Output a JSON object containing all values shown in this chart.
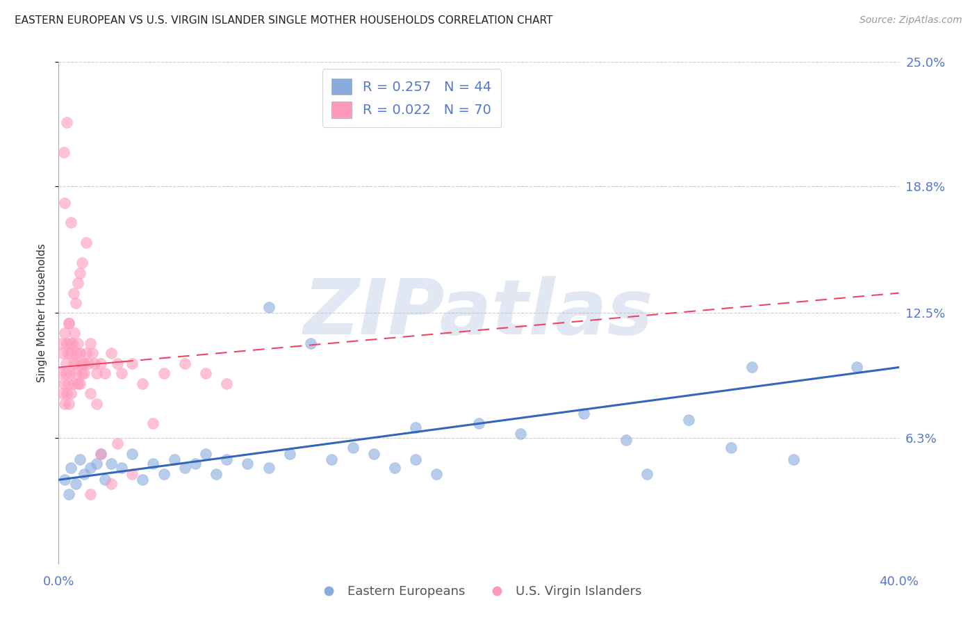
{
  "title": "EASTERN EUROPEAN VS U.S. VIRGIN ISLANDER SINGLE MOTHER HOUSEHOLDS CORRELATION CHART",
  "source": "Source: ZipAtlas.com",
  "ylabel": "Single Mother Households",
  "xlim": [
    0.0,
    40.0
  ],
  "ylim": [
    0.0,
    25.0
  ],
  "yticks": [
    6.3,
    12.5,
    18.8,
    25.0
  ],
  "ytick_labels": [
    "6.3%",
    "12.5%",
    "18.8%",
    "25.0%"
  ],
  "xticks": [
    0.0,
    10.0,
    20.0,
    30.0,
    40.0
  ],
  "xtick_labels": [
    "0.0%",
    "",
    "",
    "",
    "40.0%"
  ],
  "blue_color": "#88AADD",
  "pink_color": "#FF99BB",
  "blue_line_color": "#3366BB",
  "pink_line_color": "#EE4466",
  "background_color": "#FFFFFF",
  "grid_color": "#CCCCCC",
  "title_fontsize": 11,
  "tick_label_color": "#5577CC",
  "blue_scatter_x": [
    0.3,
    0.5,
    0.6,
    0.8,
    1.0,
    1.2,
    1.5,
    1.8,
    2.0,
    2.2,
    2.5,
    3.0,
    3.5,
    4.0,
    4.5,
    5.0,
    5.5,
    6.0,
    6.5,
    7.0,
    7.5,
    8.0,
    9.0,
    10.0,
    11.0,
    12.0,
    13.0,
    14.0,
    15.0,
    16.0,
    17.0,
    18.0,
    20.0,
    22.0,
    25.0,
    27.0,
    28.0,
    30.0,
    32.0,
    33.0,
    35.0,
    10.0,
    38.0,
    17.0
  ],
  "blue_scatter_y": [
    4.2,
    3.5,
    4.8,
    4.0,
    5.2,
    4.5,
    4.8,
    5.0,
    5.5,
    4.2,
    5.0,
    4.8,
    5.5,
    4.2,
    5.0,
    4.5,
    5.2,
    4.8,
    5.0,
    5.5,
    4.5,
    5.2,
    5.0,
    4.8,
    5.5,
    11.0,
    5.2,
    5.8,
    5.5,
    4.8,
    5.2,
    4.5,
    7.0,
    6.5,
    7.5,
    6.2,
    4.5,
    7.2,
    5.8,
    9.8,
    5.2,
    12.8,
    9.8,
    6.8
  ],
  "pink_scatter_x": [
    0.1,
    0.15,
    0.2,
    0.2,
    0.25,
    0.3,
    0.3,
    0.35,
    0.35,
    0.4,
    0.4,
    0.45,
    0.45,
    0.5,
    0.5,
    0.55,
    0.55,
    0.6,
    0.6,
    0.65,
    0.7,
    0.7,
    0.75,
    0.8,
    0.8,
    0.85,
    0.9,
    0.9,
    1.0,
    1.0,
    1.1,
    1.1,
    1.2,
    1.2,
    1.3,
    1.4,
    1.5,
    1.6,
    1.7,
    1.8,
    2.0,
    2.2,
    2.5,
    2.8,
    3.0,
    3.5,
    4.0,
    5.0,
    6.0,
    7.0,
    8.0,
    1.5,
    2.5,
    3.5,
    0.7,
    0.9,
    1.1,
    1.3,
    0.6,
    0.3,
    0.5,
    0.8,
    1.0,
    1.5,
    0.4,
    2.0,
    2.8,
    4.5,
    1.8,
    0.25
  ],
  "pink_scatter_y": [
    9.5,
    11.0,
    8.5,
    10.5,
    9.0,
    11.5,
    8.0,
    10.0,
    9.5,
    11.0,
    8.5,
    10.5,
    9.0,
    12.0,
    8.0,
    11.0,
    9.5,
    10.5,
    8.5,
    11.0,
    10.0,
    9.0,
    11.5,
    10.0,
    9.5,
    10.5,
    11.0,
    9.0,
    10.5,
    9.0,
    10.0,
    9.5,
    10.0,
    9.5,
    10.5,
    10.0,
    11.0,
    10.5,
    10.0,
    9.5,
    10.0,
    9.5,
    10.5,
    10.0,
    9.5,
    10.0,
    9.0,
    9.5,
    10.0,
    9.5,
    9.0,
    3.5,
    4.0,
    4.5,
    13.5,
    14.0,
    15.0,
    16.0,
    17.0,
    18.0,
    12.0,
    13.0,
    14.5,
    8.5,
    22.0,
    5.5,
    6.0,
    7.0,
    8.0,
    20.5
  ],
  "blue_trendline_x": [
    0.0,
    40.0
  ],
  "blue_trendline_y": [
    4.2,
    9.8
  ],
  "pink_trendline_x": [
    0.0,
    40.0
  ],
  "pink_trendline_y": [
    9.8,
    13.5
  ],
  "pink_solid_end": 3.0,
  "watermark": "ZIPatlas",
  "legend_blue_label": "R = 0.257   N = 44",
  "legend_pink_label": "R = 0.022   N = 70",
  "legend_blue_color": "#88AADD",
  "legend_pink_color": "#FF99BB",
  "bottom_legend_blue": "Eastern Europeans",
  "bottom_legend_pink": "U.S. Virgin Islanders"
}
